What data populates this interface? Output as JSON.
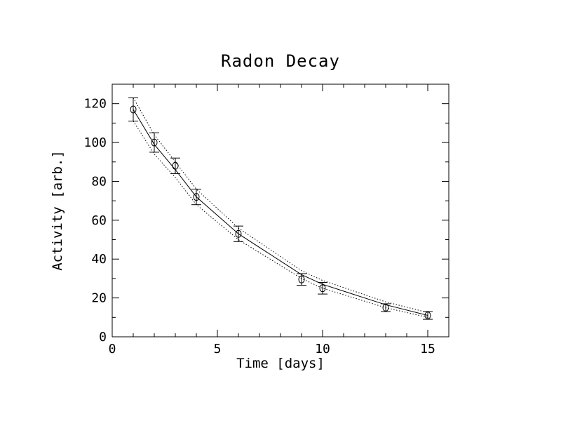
{
  "chart_data": {
    "type": "scatter",
    "title": "Radon Decay",
    "xlabel": "Time [days]",
    "ylabel": "Activity [arb.]",
    "xlim": [
      0,
      16
    ],
    "ylim": [
      0,
      130
    ],
    "x_ticks": [
      0,
      5,
      10,
      15
    ],
    "x_minor_step": 1,
    "y_ticks": [
      0,
      20,
      40,
      60,
      80,
      100,
      120
    ],
    "y_minor_step": 10,
    "grid": false,
    "points": {
      "x": [
        1,
        2,
        3,
        4,
        6,
        9,
        10,
        13,
        15
      ],
      "y": [
        117,
        100,
        88,
        72,
        53,
        29.5,
        25,
        15,
        11
      ],
      "err": [
        6,
        5,
        4,
        4,
        4,
        3,
        3,
        2,
        2
      ]
    },
    "fit": {
      "x": [
        1,
        2,
        3,
        4,
        6,
        9,
        10,
        13,
        15
      ],
      "y": [
        117,
        99,
        86,
        72,
        53,
        32,
        27,
        16.5,
        11
      ]
    },
    "band_upper": {
      "x": [
        1,
        2,
        3,
        4,
        6,
        9,
        10,
        13,
        15
      ],
      "y": [
        123,
        104,
        90,
        76,
        56,
        34,
        29,
        18,
        12.5
      ]
    },
    "band_lower": {
      "x": [
        1,
        2,
        3,
        4,
        6,
        9,
        10,
        13,
        15
      ],
      "y": [
        111,
        94,
        82,
        68,
        50,
        30,
        25,
        15,
        10
      ]
    }
  }
}
